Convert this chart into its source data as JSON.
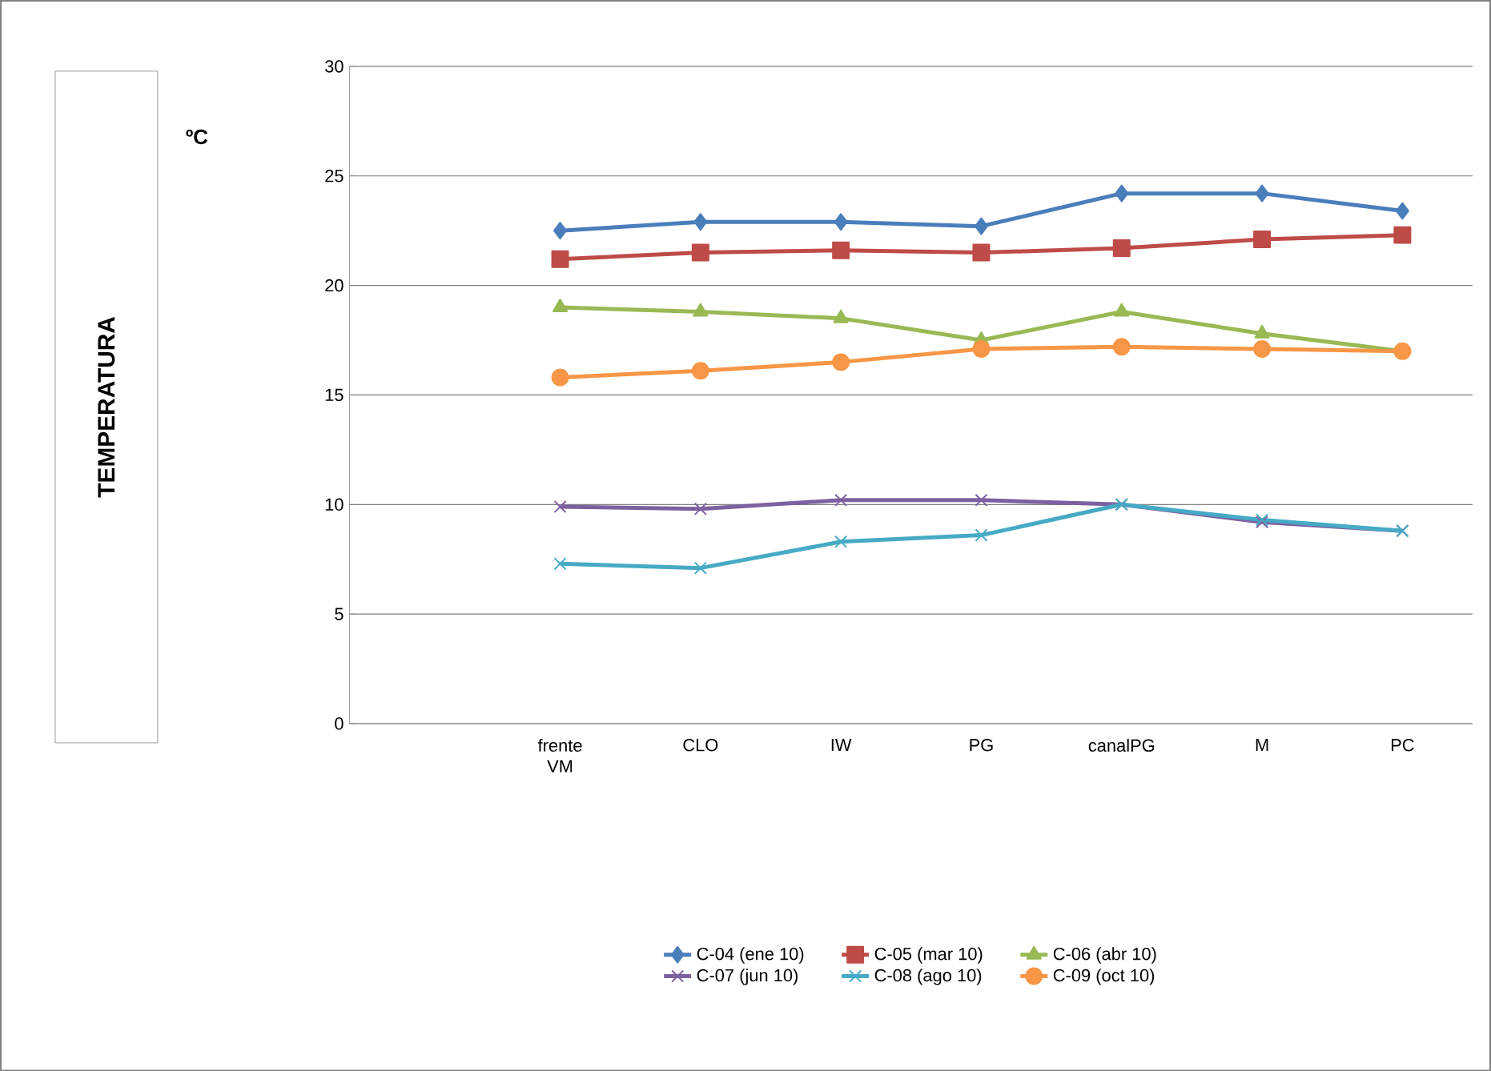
{
  "chart_data": {
    "type": "line",
    "annotations": [
      "TEMPERATURA",
      "ºC"
    ],
    "categories": [
      null,
      "frente VM",
      "CLO",
      "IW",
      "PG",
      "canalPG",
      "M",
      "PC"
    ],
    "ylim": [
      0,
      30
    ],
    "yticks": [
      0,
      5,
      10,
      15,
      20,
      25,
      30
    ],
    "grid": "y",
    "legend": "bottom",
    "series": [
      {
        "name": "C-04 (ene 10)",
        "color": "#4a7ebb",
        "marker": "diamond",
        "values": [
          null,
          22.5,
          22.9,
          22.9,
          22.7,
          24.2,
          24.2,
          23.4
        ]
      },
      {
        "name": "C-05 (mar 10)",
        "color": "#be4b48",
        "marker": "square",
        "values": [
          null,
          21.2,
          21.5,
          21.6,
          21.5,
          21.7,
          22.1,
          22.3
        ]
      },
      {
        "name": "C-06 (abr 10)",
        "color": "#98b954",
        "marker": "triangle",
        "values": [
          null,
          19.0,
          18.8,
          18.5,
          17.5,
          18.8,
          17.8,
          17.0
        ]
      },
      {
        "name": "C-07 (jun 10)",
        "color": "#7d60a0",
        "marker": "cross",
        "values": [
          null,
          9.9,
          9.8,
          10.2,
          10.2,
          10.0,
          9.2,
          8.8
        ]
      },
      {
        "name": "C-08 (ago 10)",
        "color": "#46aac5",
        "marker": "cross",
        "values": [
          null,
          7.3,
          7.1,
          8.3,
          8.6,
          10.0,
          9.3,
          8.8
        ]
      },
      {
        "name": "C-09 (oct 10)",
        "color": "#f79646",
        "marker": "circle",
        "values": [
          null,
          15.8,
          16.1,
          16.5,
          17.1,
          17.2,
          17.1,
          17.0
        ]
      }
    ]
  }
}
